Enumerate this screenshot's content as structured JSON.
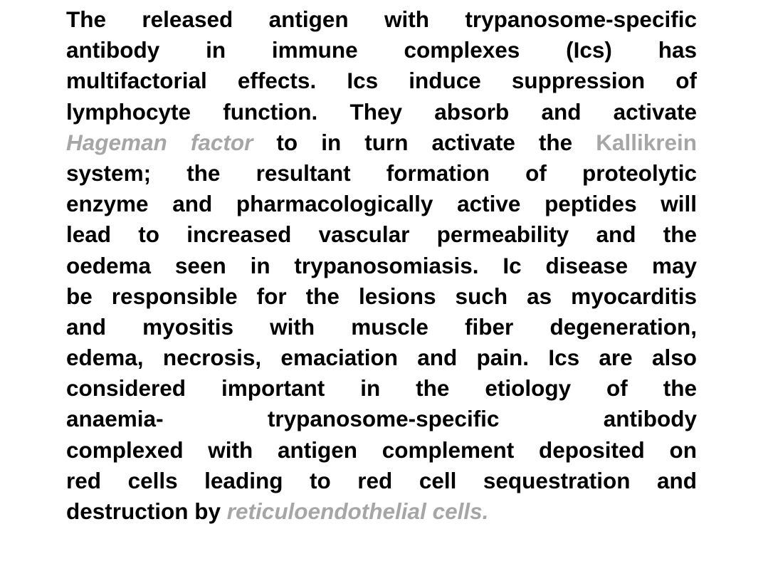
{
  "paragraph": {
    "lines": [
      "The released antigen with trypanosome-specific",
      "antibody in immune complexes (Ics) has",
      "multifactorial effects. Ics induce suppression of",
      "lymphocyte function. They absorb and activate",
      "system; the resultant formation of proteolytic",
      "enzyme and pharmacologically active peptides will",
      "lead to increased vascular permeability and the",
      "oedema seen in trypanosomiasis. Ic disease may",
      "be responsible for the lesions such as myocarditis",
      "and myositis with muscle fiber degeneration,",
      "edema, necrosis, emaciation and pain. Ics are also",
      "considered important in the etiology of the",
      "anaemia- trypanosome-specific antibody",
      "complexed with antigen complement deposited on",
      "red cells leading to red cell sequestration and"
    ],
    "line5": {
      "term_hageman": "Hageman factor",
      "middle": " to in turn activate the ",
      "term_kallikrein": "Kallikrein"
    },
    "last_line": {
      "lead": "destruction by ",
      "term_reticulo": "reticuloendothelial cells."
    }
  },
  "colors": {
    "text": "#000000",
    "highlight": "#a6a6a6",
    "background": "#ffffff"
  }
}
